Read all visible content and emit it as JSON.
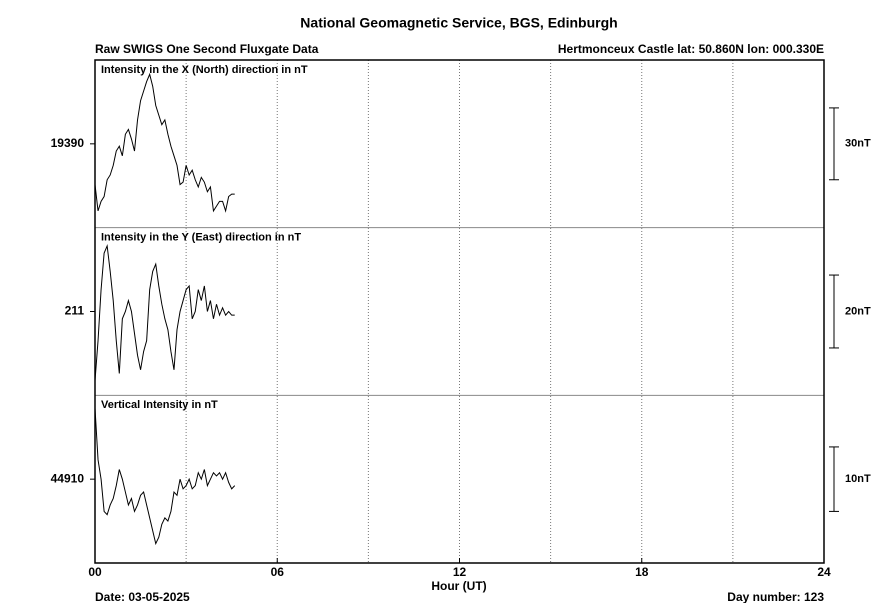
{
  "page": {
    "title": "National Geomagnetic Service, BGS, Edinburgh",
    "subtitle_left": "Raw SWIGS One Second Fluxgate Data",
    "subtitle_right": "Hertmonceux Castle  lat: 50.860N lon: 000.330E",
    "date": "Date: 03-05-2025",
    "day_number": "Day number:  123"
  },
  "x_axis": {
    "label": "Hour (UT)",
    "xlim": [
      0,
      24
    ],
    "xticks": [
      {
        "value": 0,
        "label": "00"
      },
      {
        "value": 6,
        "label": "06"
      },
      12,
      18,
      24
    ],
    "xminor": [
      3,
      9,
      15,
      21
    ],
    "grid": true
  },
  "chart_data": [
    {
      "type": "line",
      "title": "Intensity in the X (North) direction in nT",
      "x": [
        0,
        0.1,
        0.2,
        0.3,
        0.4,
        0.5,
        0.6,
        0.7,
        0.8,
        0.9,
        1,
        1.1,
        1.2,
        1.3,
        1.4,
        1.5,
        1.6,
        1.7,
        1.8,
        1.9,
        2,
        2.1,
        2.2,
        2.3,
        2.4,
        2.5,
        2.6,
        2.7,
        2.8,
        2.9,
        3,
        3.1,
        3.2,
        3.3,
        3.4,
        3.5,
        3.6,
        3.7,
        3.8,
        3.9,
        4,
        4.1,
        4.2,
        4.3,
        4.4,
        4.5,
        4.6
      ],
      "series": [
        {
          "name": "X",
          "color": "#000000",
          "values": [
            19373,
            19362,
            19366,
            19368,
            19375,
            19377,
            19381,
            19387,
            19389,
            19385,
            19394,
            19396,
            19392,
            19387,
            19400,
            19408,
            19412,
            19416,
            19419,
            19414,
            19406,
            19402,
            19398,
            19400,
            19394,
            19389,
            19385,
            19381,
            19373,
            19374,
            19381,
            19377,
            19379,
            19375,
            19372,
            19376,
            19374,
            19370,
            19372,
            19362,
            19364,
            19366,
            19366,
            19362,
            19368,
            19369,
            19369
          ]
        }
      ],
      "ylim": [
        19355,
        19425
      ],
      "yticks": [
        19390
      ],
      "scale_bar": {
        "value": 30,
        "label": "30nT"
      }
    },
    {
      "type": "line",
      "title": "Intensity in the Y (East) direction in nT",
      "x": [
        0,
        0.1,
        0.2,
        0.3,
        0.4,
        0.5,
        0.6,
        0.7,
        0.8,
        0.9,
        1,
        1.1,
        1.2,
        1.3,
        1.4,
        1.5,
        1.6,
        1.7,
        1.8,
        1.9,
        2,
        2.1,
        2.2,
        2.3,
        2.4,
        2.5,
        2.6,
        2.7,
        2.8,
        2.9,
        3,
        3.1,
        3.2,
        3.3,
        3.4,
        3.5,
        3.6,
        3.7,
        3.8,
        3.9,
        4,
        4.1,
        4.2,
        4.3,
        4.4,
        4.5,
        4.6
      ],
      "series": [
        {
          "name": "Y",
          "color": "#000000",
          "values": [
            192,
            203,
            217,
            227,
            229,
            222,
            214,
            203,
            194,
            209,
            211,
            214,
            211,
            205,
            199,
            195,
            200,
            203,
            217,
            222,
            224,
            218,
            213,
            209,
            206,
            200,
            195,
            206,
            211,
            214,
            217,
            218,
            209,
            211,
            217,
            214,
            218,
            211,
            214,
            209,
            213,
            210,
            212,
            210,
            211,
            210,
            210
          ]
        }
      ],
      "ylim": [
        188,
        234
      ],
      "yticks": [
        211
      ],
      "scale_bar": {
        "value": 20,
        "label": "20nT"
      }
    },
    {
      "type": "line",
      "title": "Vertical Intensity in nT",
      "x": [
        0,
        0.1,
        0.2,
        0.3,
        0.4,
        0.5,
        0.6,
        0.7,
        0.8,
        0.9,
        1,
        1.1,
        1.2,
        1.3,
        1.4,
        1.5,
        1.6,
        1.7,
        1.8,
        1.9,
        2,
        2.1,
        2.2,
        2.3,
        2.4,
        2.5,
        2.6,
        2.7,
        2.8,
        2.9,
        3,
        3.1,
        3.2,
        3.3,
        3.4,
        3.5,
        3.6,
        3.7,
        3.8,
        3.9,
        4,
        4.1,
        4.2,
        4.3,
        4.4,
        4.5,
        4.6
      ],
      "series": [
        {
          "name": "Z",
          "color": "#000000",
          "values": [
            44921,
            44913,
            44910,
            44905,
            44904.5,
            44906,
            44907,
            44909,
            44911.5,
            44910,
            44908,
            44906,
            44907,
            44905,
            44906,
            44907.5,
            44908,
            44906,
            44904,
            44902,
            44900,
            44901,
            44903,
            44904,
            44903.5,
            44905,
            44908,
            44907.5,
            44910,
            44908.5,
            44909,
            44910,
            44908.5,
            44909,
            44911,
            44910,
            44911.5,
            44909,
            44910,
            44911,
            44910.5,
            44911,
            44910,
            44911,
            44909.5,
            44908.5,
            44909
          ]
        }
      ],
      "ylim": [
        44897,
        44923
      ],
      "yticks": [
        44910
      ],
      "scale_bar": {
        "value": 10,
        "label": "10nT"
      }
    }
  ]
}
